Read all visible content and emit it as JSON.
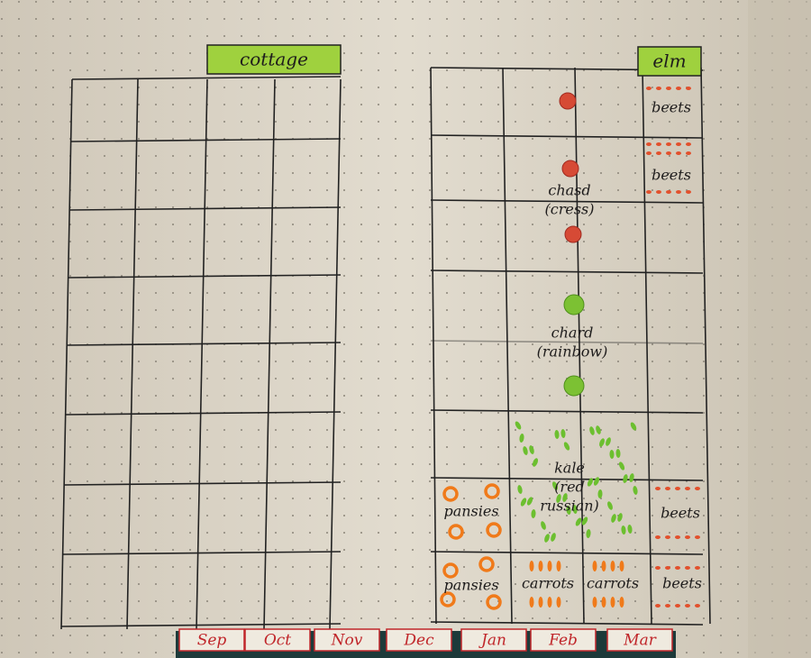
{
  "bed_tabs": [
    "cottage",
    "elm"
  ],
  "plants": [
    {
      "lines": [
        "beets"
      ]
    },
    {
      "lines": [
        "beets"
      ]
    },
    {
      "lines": [
        "chasd",
        "(cress)"
      ]
    },
    {
      "lines": [
        "chard",
        "(rainbow)"
      ]
    },
    {
      "lines": [
        "kale",
        "(red",
        "russian)"
      ]
    },
    {
      "lines": [
        "pansies"
      ]
    },
    {
      "lines": [
        "beets"
      ]
    },
    {
      "lines": [
        "pansies"
      ]
    },
    {
      "lines": [
        "carrots"
      ]
    },
    {
      "lines": [
        "carrots"
      ]
    },
    {
      "lines": [
        "beets"
      ]
    }
  ],
  "months": [
    "Sep",
    "Oct",
    "Nov",
    "Dec",
    "Jan",
    "Feb",
    "Mar"
  ]
}
